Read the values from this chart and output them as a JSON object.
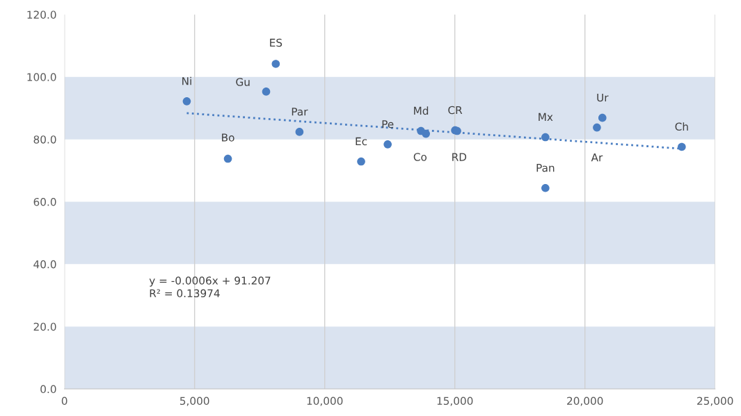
{
  "chart_data": {
    "type": "scatter",
    "series": [
      {
        "color": "#4a7ec2",
        "x": [
          4700,
          6280,
          7750,
          8120,
          9030,
          11400,
          12420,
          13700,
          13890,
          15010,
          15090,
          18480,
          18480,
          20460,
          20670,
          23720
        ],
        "values": [
          92.2,
          73.8,
          95.3,
          104.2,
          82.4,
          72.9,
          78.4,
          82.7,
          81.8,
          82.9,
          82.7,
          80.7,
          64.4,
          83.8,
          86.9,
          77.6
        ]
      },
      {
        "type": "line",
        "color": "#4a7ec2",
        "line_style": "dotted",
        "marker": "none",
        "x": [
          4700,
          23720
        ],
        "values": [
          88.4,
          77.0
        ]
      }
    ],
    "annotations": [
      {
        "text": "Ni",
        "x": 4700,
        "y": 92.2
      },
      {
        "text": "Bo",
        "x": 6280,
        "y": 73.8
      },
      {
        "text": "Gu",
        "x": 7750,
        "y": 95.3
      },
      {
        "text": "ES",
        "x": 8120,
        "y": 104.2
      },
      {
        "text": "Par",
        "x": 9030,
        "y": 82.4
      },
      {
        "text": "Ec",
        "x": 11400,
        "y": 72.9
      },
      {
        "text": "Pe",
        "x": 12420,
        "y": 78.4
      },
      {
        "text": "Md",
        "x": 13700,
        "y": 82.7
      },
      {
        "text": "Co",
        "x": 13890,
        "y": 81.8
      },
      {
        "text": "CR",
        "x": 15010,
        "y": 82.9
      },
      {
        "text": "RD",
        "x": 15090,
        "y": 82.7
      },
      {
        "text": "Mx",
        "x": 18480,
        "y": 80.7
      },
      {
        "text": "Pan",
        "x": 18480,
        "y": 64.4
      },
      {
        "text": "Ar",
        "x": 20460,
        "y": 83.8
      },
      {
        "text": "Ur",
        "x": 20670,
        "y": 86.9
      },
      {
        "text": "Ch",
        "x": 23720,
        "y": 77.6
      },
      "y = -0.0006x + 91.207\nR² = 0.13974"
    ],
    "bands": [
      {
        "axis": "y",
        "from": 80,
        "to": 100,
        "color": "#dae3f0"
      },
      {
        "axis": "y",
        "from": 40,
        "to": 60,
        "color": "#dae3f0"
      },
      {
        "axis": "y",
        "from": 0,
        "to": 20,
        "color": "#dae3f0"
      }
    ],
    "xlim": [
      0,
      25000
    ],
    "xticks": [
      {
        "value": 0,
        "label": "0"
      },
      {
        "value": 5000,
        "label": "5,000"
      },
      {
        "value": 10000,
        "label": "10,000"
      },
      {
        "value": 15000,
        "label": "15,000"
      },
      {
        "value": 20000,
        "label": "20,000"
      },
      {
        "value": 25000,
        "label": "25,000"
      }
    ],
    "ylim": [
      0,
      120
    ],
    "yticks": [
      {
        "value": 0,
        "label": "0.0"
      },
      {
        "value": 20,
        "label": "20.0"
      },
      {
        "value": 40,
        "label": "40.0"
      },
      {
        "value": 60,
        "label": "60.0"
      },
      {
        "value": 80,
        "label": "80.0"
      },
      {
        "value": 100,
        "label": "100.0"
      },
      {
        "value": 120,
        "label": "120.0"
      }
    ],
    "grid": "x",
    "marker": "circle"
  }
}
